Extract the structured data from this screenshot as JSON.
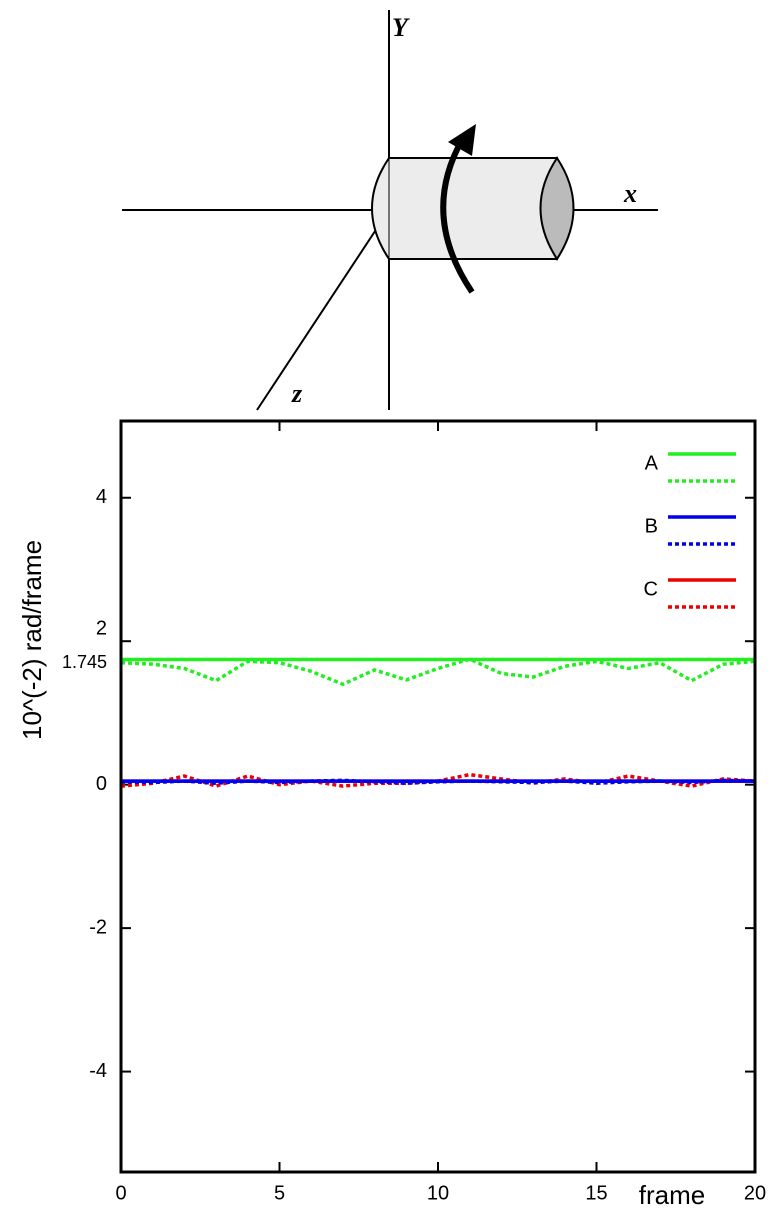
{
  "diagram": {
    "y_label": "Y",
    "x_label": "x",
    "z_label": "z"
  },
  "chart_data": {
    "type": "line",
    "x_label": "frame",
    "y_label": "10^(-2) rad/frame",
    "x": [
      0,
      1,
      2,
      3,
      4,
      5,
      6,
      7,
      8,
      9,
      10,
      11,
      12,
      13,
      14,
      15,
      16,
      17,
      18,
      19,
      20
    ],
    "series": [
      {
        "name": "A",
        "color": "#22ee22",
        "dashed": false,
        "values": [
          1.745,
          1.745,
          1.745,
          1.745,
          1.745,
          1.745,
          1.745,
          1.745,
          1.745,
          1.745,
          1.745,
          1.745,
          1.745,
          1.745,
          1.745,
          1.745,
          1.745,
          1.745,
          1.745,
          1.745,
          1.745
        ]
      },
      {
        "color": "#22ee22",
        "dashed": true,
        "values": [
          1.7,
          1.68,
          1.62,
          1.45,
          1.72,
          1.7,
          1.58,
          1.4,
          1.6,
          1.46,
          1.62,
          1.75,
          1.55,
          1.5,
          1.65,
          1.72,
          1.62,
          1.7,
          1.45,
          1.68,
          1.72
        ]
      },
      {
        "name": "B",
        "color": "#0000ee",
        "dashed": false,
        "values": [
          0.05,
          0.05,
          0.05,
          0.05,
          0.05,
          0.05,
          0.05,
          0.05,
          0.05,
          0.05,
          0.05,
          0.05,
          0.05,
          0.05,
          0.05,
          0.05,
          0.05,
          0.05,
          0.05,
          0.05,
          0.05
        ]
      },
      {
        "color": "#0000ee",
        "dashed": true,
        "values": [
          0.04,
          0.03,
          0.05,
          0.02,
          0.05,
          0.03,
          0.05,
          0.06,
          0.04,
          0.02,
          0.04,
          0.05,
          0.04,
          0.03,
          0.05,
          0.02,
          0.04,
          0.05,
          0.03,
          0.06,
          0.05
        ]
      },
      {
        "name": "C",
        "color": "#ee0000",
        "dashed": false,
        "values": [
          0.05,
          0.05,
          0.05,
          0.05,
          0.05,
          0.05,
          0.05,
          0.05,
          0.05,
          0.05,
          0.05,
          0.05,
          0.05,
          0.05,
          0.05,
          0.05,
          0.05,
          0.05,
          0.05,
          0.05,
          0.05
        ]
      },
      {
        "color": "#ee0000",
        "dashed": true,
        "values": [
          -0.02,
          0.02,
          0.12,
          -0.02,
          0.12,
          0.0,
          0.05,
          -0.02,
          0.02,
          0.02,
          0.05,
          0.14,
          0.08,
          0.02,
          0.08,
          0.02,
          0.12,
          0.05,
          -0.02,
          0.08,
          0.05
        ]
      }
    ],
    "xlim": [
      0,
      20
    ],
    "xticks": [
      0,
      5,
      10,
      15,
      20
    ],
    "ylim": [
      -5.4,
      5.07
    ],
    "yticks": [
      -4,
      -2,
      0,
      1.745,
      2,
      4
    ],
    "grid": false,
    "legend": "upper right"
  }
}
